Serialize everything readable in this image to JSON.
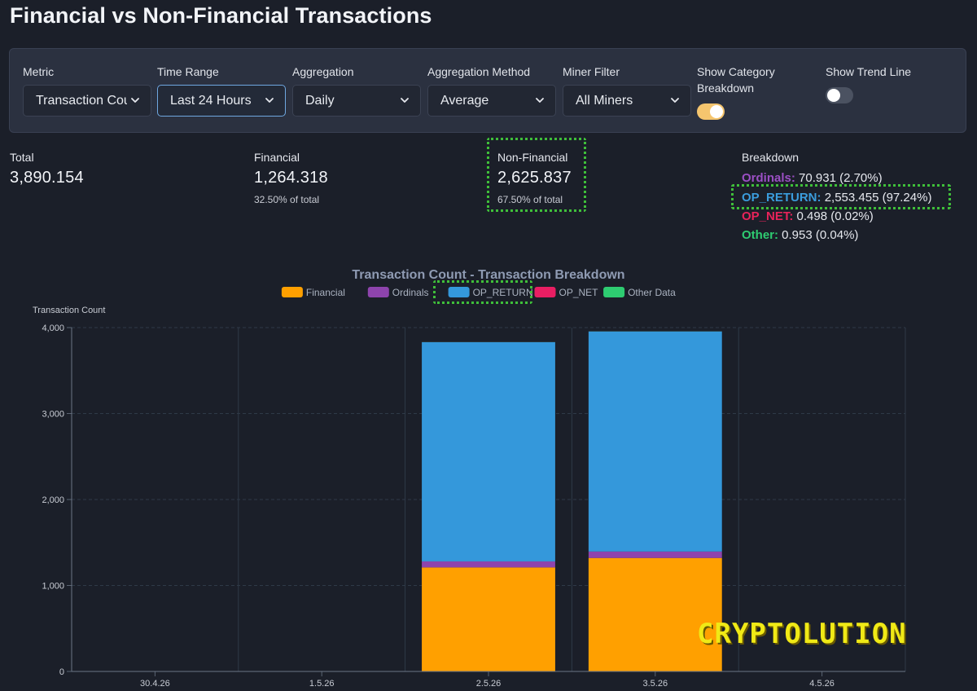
{
  "page": {
    "title": "Financial vs Non-Financial Transactions"
  },
  "controls": {
    "metric": {
      "label": "Metric",
      "value": "Transaction Count"
    },
    "time_range": {
      "label": "Time Range",
      "value": "Last 24 Hours"
    },
    "aggregation": {
      "label": "Aggregation",
      "value": "Daily"
    },
    "aggregation_method": {
      "label": "Aggregation Method",
      "value": "Average"
    },
    "miner_filter": {
      "label": "Miner Filter",
      "value": "All Miners"
    },
    "show_category_breakdown": {
      "label_line1": "Show Category",
      "label_line2": "Breakdown",
      "on": true
    },
    "show_trend_line": {
      "label": "Show Trend Line",
      "on": false
    }
  },
  "stats": {
    "total": {
      "label": "Total",
      "value": "3,890.154"
    },
    "financial": {
      "label": "Financial",
      "value": "1,264.318",
      "sub": "32.50% of total"
    },
    "non_financial": {
      "label": "Non-Financial",
      "value": "2,625.837",
      "sub": "67.50% of total"
    },
    "breakdown": {
      "label": "Breakdown",
      "items": [
        {
          "name": "Ordinals:",
          "value": "70.931 (2.70%)",
          "color": "#9b4fc4"
        },
        {
          "name": "OP_RETURN:",
          "value": "2,553.455 (97.24%)",
          "color": "#3b9ddd"
        },
        {
          "name": "OP_NET:",
          "value": "0.498 (0.02%)",
          "color": "#e8235a"
        },
        {
          "name": "Other:",
          "value": "0.953 (0.04%)",
          "color": "#2ecc71"
        }
      ]
    }
  },
  "chart_data": {
    "type": "bar",
    "stacked": true,
    "title": "Transaction Count - Transaction Breakdown",
    "ylabel": "Transaction Count",
    "xlabel": "",
    "x_ticks": [
      "30.4.26",
      "1.5.26",
      "2.5.26",
      "3.5.26",
      "4.5.26"
    ],
    "y_ticks": [
      "0",
      "1,000",
      "2,000",
      "3,000",
      "4,000"
    ],
    "ylim": [
      0,
      4000
    ],
    "grid": true,
    "legend_position": "top-center",
    "categories": [
      "2.5.26",
      "3.5.26"
    ],
    "series": [
      {
        "name": "Financial",
        "color": "#ffa000",
        "values": [
          1210,
          1320
        ]
      },
      {
        "name": "Ordinals",
        "color": "#8e44ad",
        "values": [
          70,
          75
        ]
      },
      {
        "name": "OP_RETURN",
        "color": "#3498db",
        "values": [
          2550,
          2560
        ]
      },
      {
        "name": "OP_NET",
        "color": "#e91e63",
        "values": [
          0.5,
          0.5
        ]
      },
      {
        "name": "Other Data",
        "color": "#2ecc71",
        "values": [
          1,
          1
        ]
      }
    ]
  },
  "watermark": "CRYPTOLUTION"
}
